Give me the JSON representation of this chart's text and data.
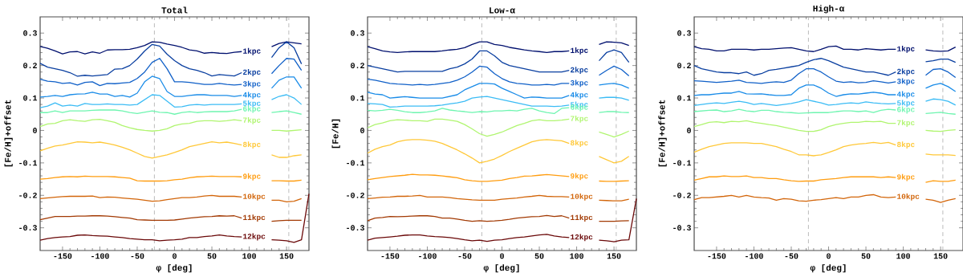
{
  "chart_data": [
    {
      "type": "line",
      "title": "Total",
      "xlabel": "φ [deg]",
      "ylabel": "[Fe/H]+offset",
      "xlim": [
        -180,
        180
      ],
      "ylim": [
        -0.37,
        0.35
      ],
      "xticks": [
        -150,
        -100,
        -50,
        0,
        50,
        100,
        150
      ],
      "yticks": [
        -0.3,
        -0.2,
        -0.1,
        0,
        0.1,
        0.2,
        0.3
      ],
      "marker": "none",
      "line_style": "solid",
      "x": [
        -180,
        -170,
        -160,
        -150,
        -140,
        -130,
        -120,
        -110,
        -100,
        -90,
        -80,
        -70,
        -60,
        -50,
        -40,
        -30,
        -20,
        -10,
        0,
        10,
        20,
        30,
        40,
        50,
        60,
        70,
        80,
        90,
        110,
        130,
        140,
        150,
        160,
        170,
        180
      ],
      "ref_lines": [
        {
          "axis": "x",
          "value": -27,
          "color": "#aaaaaa",
          "line_style": "dashed"
        },
        {
          "axis": "x",
          "value": 153,
          "color": "#aaaaaa",
          "line_style": "dashed"
        }
      ],
      "series": [
        {
          "name": "1kpc",
          "color": "#00106e",
          "values": [
            0.259,
            0.253,
            0.245,
            0.236,
            0.242,
            0.243,
            0.236,
            0.242,
            0.238,
            0.248,
            0.249,
            0.249,
            0.25,
            0.255,
            0.262,
            0.273,
            0.272,
            0.266,
            0.262,
            0.256,
            0.248,
            0.245,
            0.238,
            0.24,
            0.238,
            0.237,
            0.241,
            0.243,
            null,
            0.258,
            0.268,
            0.273,
            0.27,
            0.267,
            null
          ]
        },
        {
          "name": "2kpc",
          "color": "#0a3fa0",
          "values": [
            0.207,
            0.195,
            0.19,
            0.185,
            0.178,
            0.167,
            0.17,
            0.168,
            0.17,
            0.172,
            0.189,
            0.19,
            0.2,
            0.22,
            0.245,
            0.265,
            0.26,
            0.235,
            0.215,
            0.2,
            0.19,
            0.185,
            0.178,
            0.168,
            0.172,
            0.17,
            0.168,
            0.178,
            null,
            0.225,
            0.255,
            0.273,
            0.255,
            0.205,
            null
          ]
        },
        {
          "name": "3kpc",
          "color": "#1060c8",
          "values": [
            0.158,
            0.152,
            0.15,
            0.145,
            0.147,
            0.14,
            0.148,
            0.15,
            0.138,
            0.145,
            0.144,
            0.146,
            0.148,
            0.16,
            0.18,
            0.21,
            0.222,
            0.19,
            0.15,
            0.15,
            0.148,
            0.145,
            0.142,
            0.142,
            0.145,
            0.142,
            0.14,
            0.142,
            null,
            0.175,
            0.2,
            0.222,
            0.22,
            0.185,
            null
          ]
        },
        {
          "name": "4kpc",
          "color": "#1a8ce8",
          "values": [
            0.103,
            0.105,
            0.108,
            0.105,
            0.11,
            0.112,
            0.113,
            0.118,
            0.112,
            0.112,
            0.105,
            0.108,
            0.103,
            0.115,
            0.15,
            0.167,
            0.16,
            0.12,
            0.105,
            0.105,
            0.108,
            0.11,
            0.11,
            0.108,
            0.108,
            0.108,
            0.105,
            0.108,
            null,
            0.13,
            0.155,
            0.165,
            0.165,
            0.13,
            null
          ]
        },
        {
          "name": "5kpc",
          "color": "#3cbcf5",
          "values": [
            0.07,
            0.075,
            0.085,
            0.075,
            0.078,
            0.075,
            0.083,
            0.08,
            0.08,
            0.082,
            0.08,
            0.08,
            0.078,
            0.08,
            0.095,
            0.11,
            0.108,
            0.09,
            0.072,
            0.073,
            0.078,
            0.08,
            0.078,
            0.08,
            0.08,
            0.08,
            0.08,
            0.082,
            null,
            0.095,
            0.105,
            0.11,
            0.1,
            0.08,
            null
          ]
        },
        {
          "name": "6kpc",
          "color": "#6ef5b0",
          "values": [
            0.055,
            0.055,
            0.06,
            0.055,
            0.06,
            0.06,
            0.06,
            0.062,
            0.063,
            0.063,
            0.063,
            0.06,
            0.055,
            0.052,
            0.056,
            0.06,
            0.056,
            0.055,
            0.05,
            0.055,
            0.058,
            0.055,
            0.057,
            0.058,
            0.058,
            0.058,
            0.06,
            0.065,
            null,
            0.055,
            0.058,
            0.06,
            0.055,
            0.05,
            null
          ]
        },
        {
          "name": "7kpc",
          "color": "#b0f570",
          "values": [
            0.012,
            0.02,
            0.022,
            0.03,
            0.033,
            0.03,
            0.028,
            0.033,
            0.034,
            0.03,
            0.025,
            0.015,
            0.008,
            0.003,
            0,
            -0.002,
            0,
            0.005,
            0.015,
            0.02,
            0.022,
            0.028,
            0.03,
            0.03,
            0.028,
            0.03,
            0.033,
            0.03,
            null,
            0,
            0,
            -0.002,
            0,
            0.002,
            null
          ]
        },
        {
          "name": "8kpc",
          "color": "#ffc838",
          "values": [
            -0.063,
            -0.055,
            -0.048,
            -0.045,
            -0.04,
            -0.035,
            -0.036,
            -0.038,
            -0.036,
            -0.04,
            -0.045,
            -0.052,
            -0.06,
            -0.07,
            -0.08,
            -0.085,
            -0.08,
            -0.075,
            -0.068,
            -0.06,
            -0.05,
            -0.045,
            -0.04,
            -0.035,
            -0.038,
            -0.036,
            -0.04,
            -0.045,
            null,
            -0.075,
            -0.083,
            -0.083,
            -0.078,
            -0.075,
            null
          ]
        },
        {
          "name": "9kpc",
          "color": "#ff9d10",
          "values": [
            -0.15,
            -0.148,
            -0.145,
            -0.143,
            -0.142,
            -0.143,
            -0.141,
            -0.142,
            -0.142,
            -0.142,
            -0.143,
            -0.145,
            -0.147,
            -0.155,
            -0.156,
            -0.156,
            -0.156,
            -0.155,
            -0.152,
            -0.15,
            -0.146,
            -0.143,
            -0.142,
            -0.141,
            -0.142,
            -0.142,
            -0.142,
            -0.143,
            null,
            -0.155,
            -0.155,
            -0.156,
            -0.156,
            -0.153,
            null
          ]
        },
        {
          "name": "10kpc",
          "color": "#d2650a",
          "values": [
            -0.21,
            -0.208,
            -0.206,
            -0.204,
            -0.203,
            -0.203,
            -0.203,
            -0.202,
            -0.207,
            -0.205,
            -0.206,
            -0.208,
            -0.21,
            -0.212,
            -0.215,
            -0.218,
            -0.217,
            -0.213,
            -0.21,
            -0.207,
            -0.207,
            -0.205,
            -0.202,
            -0.2,
            -0.203,
            -0.203,
            -0.203,
            -0.205,
            null,
            -0.215,
            -0.215,
            -0.22,
            -0.218,
            -0.21,
            null
          ]
        },
        {
          "name": "11kpc",
          "color": "#a23a04",
          "values": [
            -0.275,
            -0.27,
            -0.265,
            -0.265,
            -0.265,
            -0.264,
            -0.264,
            -0.263,
            -0.263,
            -0.264,
            -0.266,
            -0.268,
            -0.27,
            -0.275,
            -0.276,
            -0.277,
            -0.277,
            -0.277,
            -0.276,
            -0.273,
            -0.27,
            -0.268,
            -0.266,
            -0.265,
            -0.263,
            -0.264,
            -0.263,
            -0.27,
            null,
            -0.28,
            -0.278,
            -0.277,
            -0.277,
            -0.277,
            null
          ]
        },
        {
          "name": "12kpc",
          "color": "#6a0808",
          "values": [
            -0.338,
            -0.333,
            -0.33,
            -0.328,
            -0.327,
            -0.323,
            -0.322,
            -0.324,
            -0.325,
            -0.326,
            -0.328,
            -0.33,
            -0.333,
            -0.335,
            -0.337,
            -0.337,
            -0.34,
            -0.338,
            -0.337,
            -0.335,
            -0.33,
            -0.33,
            -0.327,
            -0.325,
            -0.322,
            -0.325,
            -0.327,
            -0.328,
            null,
            -0.337,
            -0.338,
            -0.34,
            -0.345,
            -0.337,
            -0.195
          ]
        }
      ]
    },
    {
      "type": "line",
      "title": "Low-α",
      "xlabel": "φ [deg]",
      "ylabel": "[Fe/H]",
      "xlim": [
        -180,
        180
      ],
      "ylim": [
        -0.37,
        0.35
      ],
      "xticks": [
        -150,
        -100,
        -50,
        0,
        50,
        100,
        150
      ],
      "yticks": [
        -0.3,
        -0.2,
        -0.1,
        0,
        0.1,
        0.2,
        0.3
      ],
      "marker": "none",
      "line_style": "solid",
      "x": [
        -180,
        -170,
        -160,
        -150,
        -140,
        -130,
        -120,
        -110,
        -100,
        -90,
        -80,
        -70,
        -60,
        -50,
        -40,
        -30,
        -20,
        -10,
        0,
        10,
        20,
        30,
        40,
        50,
        60,
        70,
        80,
        90,
        110,
        130,
        140,
        150,
        160,
        170,
        180
      ],
      "ref_lines": [
        {
          "axis": "x",
          "value": -27,
          "color": "#aaaaaa",
          "line_style": "dashed"
        },
        {
          "axis": "x",
          "value": 153,
          "color": "#aaaaaa",
          "line_style": "dashed"
        }
      ],
      "series": [
        {
          "name": "1kpc",
          "color": "#00106e",
          "values": [
            0.258,
            0.252,
            0.245,
            0.242,
            0.24,
            0.242,
            0.243,
            0.243,
            0.243,
            0.243,
            0.245,
            0.248,
            0.25,
            0.255,
            0.265,
            0.273,
            0.273,
            0.265,
            0.262,
            0.256,
            0.252,
            0.248,
            0.245,
            0.243,
            0.24,
            0.243,
            0.243,
            0.245,
            null,
            0.265,
            0.273,
            0.272,
            0.27,
            0.262,
            null
          ]
        },
        {
          "name": "2kpc",
          "color": "#0a3fa0",
          "values": [
            0.2,
            0.195,
            0.19,
            0.185,
            0.18,
            0.182,
            0.182,
            0.182,
            0.182,
            0.182,
            0.182,
            0.19,
            0.195,
            0.205,
            0.22,
            0.245,
            0.245,
            0.23,
            0.21,
            0.2,
            0.195,
            0.19,
            0.185,
            0.18,
            0.18,
            0.18,
            0.18,
            0.185,
            null,
            0.215,
            0.24,
            0.248,
            0.24,
            0.21,
            null
          ]
        },
        {
          "name": "3kpc",
          "color": "#1060c8",
          "values": [
            0.158,
            0.155,
            0.15,
            0.145,
            0.143,
            0.142,
            0.14,
            0.142,
            0.14,
            0.142,
            0.145,
            0.148,
            0.155,
            0.165,
            0.18,
            0.198,
            0.195,
            0.175,
            0.16,
            0.15,
            0.145,
            0.143,
            0.14,
            0.14,
            0.142,
            0.14,
            0.145,
            0.145,
            null,
            0.17,
            0.185,
            0.198,
            0.188,
            0.168,
            null
          ]
        },
        {
          "name": "4kpc",
          "color": "#1a8ce8",
          "values": [
            0.118,
            0.112,
            0.11,
            0.1,
            0.102,
            0.104,
            0.102,
            0.1,
            0.1,
            0.1,
            0.1,
            0.105,
            0.11,
            0.125,
            0.135,
            0.145,
            0.145,
            0.143,
            0.13,
            0.12,
            0.11,
            0.1,
            0.103,
            0.102,
            0.1,
            0.1,
            0.1,
            0.108,
            null,
            0.14,
            0.143,
            0.145,
            0.14,
            0.13,
            null
          ]
        },
        {
          "name": "5kpc",
          "color": "#3cbcf5",
          "values": [
            0.083,
            0.082,
            0.08,
            0.072,
            0.073,
            0.075,
            0.075,
            0.075,
            0.075,
            0.076,
            0.078,
            0.082,
            0.085,
            0.09,
            0.1,
            0.103,
            0.105,
            0.1,
            0.095,
            0.09,
            0.085,
            0.08,
            0.075,
            0.075,
            0.075,
            0.074,
            0.075,
            0.078,
            null,
            0.1,
            0.102,
            0.102,
            0.1,
            0.093,
            null
          ]
        },
        {
          "name": "6kpc",
          "color": "#6ef5b0",
          "values": [
            0.062,
            0.06,
            0.062,
            0.065,
            0.062,
            0.058,
            0.055,
            0.055,
            0.057,
            0.06,
            0.068,
            0.063,
            0.06,
            0.058,
            0.055,
            0.058,
            0.057,
            0.06,
            0.06,
            0.062,
            0.06,
            0.065,
            0.068,
            0.06,
            0.055,
            0.052,
            0.068,
            0.07,
            null,
            0.055,
            0.058,
            0.058,
            0.056,
            0.055,
            null
          ]
        },
        {
          "name": "7kpc",
          "color": "#b0f570",
          "values": [
            0.008,
            0.018,
            0.023,
            0.03,
            0.033,
            0.032,
            0.03,
            0.03,
            0.028,
            0.035,
            0.035,
            0.032,
            0.028,
            0.018,
            0.005,
            -0.01,
            -0.018,
            -0.012,
            -0.005,
            0.005,
            0.015,
            0.022,
            0.03,
            0.033,
            0.03,
            0.03,
            0.032,
            0.035,
            null,
            -0.005,
            -0.012,
            -0.02,
            -0.012,
            -0.002,
            null
          ]
        },
        {
          "name": "8kpc",
          "color": "#ffc838",
          "values": [
            -0.07,
            -0.058,
            -0.05,
            -0.045,
            -0.035,
            -0.03,
            -0.028,
            -0.028,
            -0.03,
            -0.033,
            -0.04,
            -0.05,
            -0.06,
            -0.072,
            -0.085,
            -0.1,
            -0.095,
            -0.088,
            -0.077,
            -0.065,
            -0.055,
            -0.045,
            -0.035,
            -0.03,
            -0.028,
            -0.03,
            -0.032,
            -0.04,
            null,
            -0.08,
            -0.09,
            -0.1,
            -0.095,
            -0.08,
            null
          ]
        },
        {
          "name": "9kpc",
          "color": "#ff9d10",
          "values": [
            -0.152,
            -0.148,
            -0.145,
            -0.142,
            -0.14,
            -0.138,
            -0.135,
            -0.137,
            -0.137,
            -0.138,
            -0.14,
            -0.143,
            -0.146,
            -0.152,
            -0.155,
            -0.157,
            -0.157,
            -0.155,
            -0.153,
            -0.148,
            -0.145,
            -0.141,
            -0.14,
            -0.138,
            -0.136,
            -0.138,
            -0.14,
            -0.142,
            null,
            -0.156,
            -0.157,
            -0.157,
            -0.156,
            -0.155,
            null
          ]
        },
        {
          "name": "10kpc",
          "color": "#d2650a",
          "values": [
            -0.21,
            -0.208,
            -0.206,
            -0.205,
            -0.203,
            -0.203,
            -0.202,
            -0.2,
            -0.205,
            -0.205,
            -0.205,
            -0.207,
            -0.21,
            -0.212,
            -0.214,
            -0.215,
            -0.215,
            -0.215,
            -0.212,
            -0.21,
            -0.208,
            -0.205,
            -0.203,
            -0.2,
            -0.203,
            -0.204,
            -0.204,
            -0.205,
            null,
            -0.215,
            -0.216,
            -0.217,
            -0.217,
            -0.212,
            null
          ]
        },
        {
          "name": "11kpc",
          "color": "#a23a04",
          "values": [
            -0.278,
            -0.27,
            -0.268,
            -0.265,
            -0.266,
            -0.265,
            -0.264,
            -0.263,
            -0.263,
            -0.265,
            -0.27,
            -0.27,
            -0.273,
            -0.277,
            -0.28,
            -0.278,
            -0.28,
            -0.279,
            -0.277,
            -0.274,
            -0.27,
            -0.268,
            -0.266,
            -0.265,
            -0.262,
            -0.265,
            -0.263,
            -0.27,
            null,
            -0.28,
            -0.28,
            -0.28,
            -0.279,
            -0.278,
            null
          ]
        },
        {
          "name": "12kpc",
          "color": "#6a0808",
          "values": [
            -0.338,
            -0.332,
            -0.33,
            -0.328,
            -0.326,
            -0.323,
            -0.322,
            -0.322,
            -0.325,
            -0.327,
            -0.328,
            -0.33,
            -0.333,
            -0.337,
            -0.34,
            -0.338,
            -0.342,
            -0.338,
            -0.337,
            -0.333,
            -0.33,
            -0.328,
            -0.325,
            -0.322,
            -0.32,
            -0.325,
            -0.328,
            -0.33,
            null,
            -0.338,
            -0.34,
            -0.343,
            -0.338,
            -0.337,
            -0.21
          ]
        }
      ]
    },
    {
      "type": "line",
      "title": "High-α",
      "xlabel": "φ [deg]",
      "ylabel": "[Fe/H]+offset",
      "xlim": [
        -180,
        180
      ],
      "ylim": [
        -0.37,
        0.35
      ],
      "xticks": [
        -150,
        -100,
        -50,
        0,
        50,
        100,
        150
      ],
      "yticks": [
        -0.3,
        -0.2,
        -0.1,
        0,
        0.1,
        0.2,
        0.3
      ],
      "marker": "none",
      "line_style": "solid",
      "x": [
        -180,
        -170,
        -160,
        -150,
        -140,
        -130,
        -120,
        -110,
        -100,
        -90,
        -80,
        -70,
        -60,
        -50,
        -40,
        -30,
        -20,
        -10,
        0,
        10,
        20,
        30,
        40,
        50,
        60,
        70,
        80,
        90,
        110,
        130,
        140,
        150,
        160,
        170
      ],
      "ref_lines": [
        {
          "axis": "x",
          "value": -27,
          "color": "#aaaaaa",
          "line_style": "dashed"
        },
        {
          "axis": "x",
          "value": 153,
          "color": "#aaaaaa",
          "line_style": "dashed"
        }
      ],
      "series": [
        {
          "name": "1kpc",
          "color": "#00106e",
          "values": [
            0.258,
            0.252,
            0.25,
            0.245,
            0.245,
            0.25,
            0.25,
            0.25,
            0.248,
            0.25,
            0.25,
            0.252,
            0.254,
            0.255,
            0.25,
            0.245,
            0.243,
            0.25,
            0.258,
            0.26,
            0.25,
            0.25,
            0.248,
            0.252,
            0.25,
            0.248,
            0.25,
            0.25,
            null,
            0.248,
            0.245,
            0.244,
            0.245,
            0.257
          ]
        },
        {
          "name": "2kpc",
          "color": "#0a3fa0",
          "values": [
            0.2,
            0.19,
            0.185,
            0.18,
            0.178,
            0.178,
            0.175,
            0.18,
            0.17,
            0.175,
            0.185,
            0.188,
            0.192,
            0.196,
            0.2,
            0.21,
            0.218,
            0.222,
            0.215,
            0.205,
            0.195,
            0.19,
            0.185,
            0.18,
            0.18,
            0.175,
            0.17,
            0.18,
            null,
            0.212,
            0.215,
            0.22,
            0.22,
            0.21
          ]
        },
        {
          "name": "3kpc",
          "color": "#1060c8",
          "values": [
            0.153,
            0.152,
            0.15,
            0.148,
            0.15,
            0.152,
            0.155,
            0.148,
            0.147,
            0.145,
            0.148,
            0.15,
            0.148,
            0.155,
            0.175,
            0.19,
            0.19,
            0.18,
            0.165,
            0.152,
            0.148,
            0.15,
            0.147,
            0.148,
            0.153,
            0.15,
            0.146,
            0.15,
            null,
            0.17,
            0.188,
            0.19,
            0.18,
            0.163
          ]
        },
        {
          "name": "4kpc",
          "color": "#1a8ce8",
          "values": [
            0.108,
            0.11,
            0.11,
            0.113,
            0.115,
            0.115,
            0.12,
            0.113,
            0.112,
            0.113,
            0.11,
            0.108,
            0.108,
            0.11,
            0.13,
            0.14,
            0.14,
            0.13,
            0.115,
            0.105,
            0.11,
            0.113,
            0.112,
            0.115,
            0.118,
            0.115,
            0.11,
            0.11,
            null,
            0.13,
            0.14,
            0.145,
            0.135,
            0.12
          ]
        },
        {
          "name": "5kpc",
          "color": "#3cbcf5",
          "values": [
            0.077,
            0.08,
            0.083,
            0.085,
            0.083,
            0.087,
            0.09,
            0.086,
            0.08,
            0.083,
            0.08,
            0.077,
            0.08,
            0.083,
            0.088,
            0.095,
            0.09,
            0.085,
            0.078,
            0.08,
            0.083,
            0.085,
            0.083,
            0.088,
            0.085,
            0.083,
            0.082,
            0.083,
            null,
            0.09,
            0.097,
            0.095,
            0.09,
            0.078
          ]
        },
        {
          "name": "6kpc",
          "color": "#6ef5b0",
          "values": [
            0.058,
            0.06,
            0.062,
            0.063,
            0.058,
            0.06,
            0.065,
            0.06,
            0.058,
            0.062,
            0.062,
            0.058,
            0.056,
            0.055,
            0.053,
            0.054,
            0.055,
            0.055,
            0.055,
            0.058,
            0.06,
            0.06,
            0.058,
            0.06,
            0.055,
            0.062,
            0.065,
            0.063,
            null,
            0.052,
            0.054,
            0.056,
            0.052,
            0.05
          ]
        },
        {
          "name": "7kpc",
          "color": "#b0f570",
          "values": [
            0.012,
            0.018,
            0.025,
            0.027,
            0.024,
            0.028,
            0.027,
            0.03,
            0.025,
            0.022,
            0.018,
            0.015,
            0.01,
            0.005,
            0,
            -0.003,
            -0.003,
            0.002,
            0.012,
            0.018,
            0.022,
            0.025,
            0.025,
            0.028,
            0.027,
            0.028,
            0.022,
            0.022,
            null,
            0,
            -0.002,
            -0.003,
            0,
            0.002
          ]
        },
        {
          "name": "8kpc",
          "color": "#ffc838",
          "values": [
            -0.067,
            -0.058,
            -0.05,
            -0.045,
            -0.04,
            -0.038,
            -0.038,
            -0.038,
            -0.04,
            -0.04,
            -0.045,
            -0.05,
            -0.058,
            -0.065,
            -0.075,
            -0.075,
            -0.078,
            -0.075,
            -0.068,
            -0.06,
            -0.05,
            -0.045,
            -0.042,
            -0.04,
            -0.037,
            -0.04,
            -0.037,
            -0.045,
            null,
            -0.073,
            -0.075,
            -0.075,
            -0.075,
            -0.077
          ]
        },
        {
          "name": "9kpc",
          "color": "#ff9d10",
          "values": [
            -0.153,
            -0.148,
            -0.143,
            -0.143,
            -0.14,
            -0.142,
            -0.142,
            -0.14,
            -0.145,
            -0.145,
            -0.148,
            -0.148,
            -0.152,
            -0.155,
            -0.157,
            -0.156,
            -0.156,
            -0.152,
            -0.15,
            -0.148,
            -0.145,
            -0.143,
            -0.143,
            -0.143,
            -0.143,
            -0.145,
            -0.143,
            -0.145,
            null,
            -0.16,
            -0.155,
            -0.157,
            -0.157,
            -0.153
          ]
        },
        {
          "name": "10kpc",
          "color": "#d2650a",
          "values": [
            -0.213,
            -0.207,
            -0.207,
            -0.205,
            -0.203,
            -0.2,
            -0.205,
            -0.2,
            -0.205,
            -0.207,
            -0.208,
            -0.215,
            -0.21,
            -0.212,
            -0.217,
            -0.218,
            -0.215,
            -0.213,
            -0.21,
            -0.207,
            -0.21,
            -0.205,
            -0.205,
            -0.2,
            -0.198,
            -0.205,
            -0.207,
            -0.205,
            null,
            -0.212,
            -0.215,
            -0.222,
            -0.215,
            -0.21
          ]
        }
      ]
    }
  ]
}
